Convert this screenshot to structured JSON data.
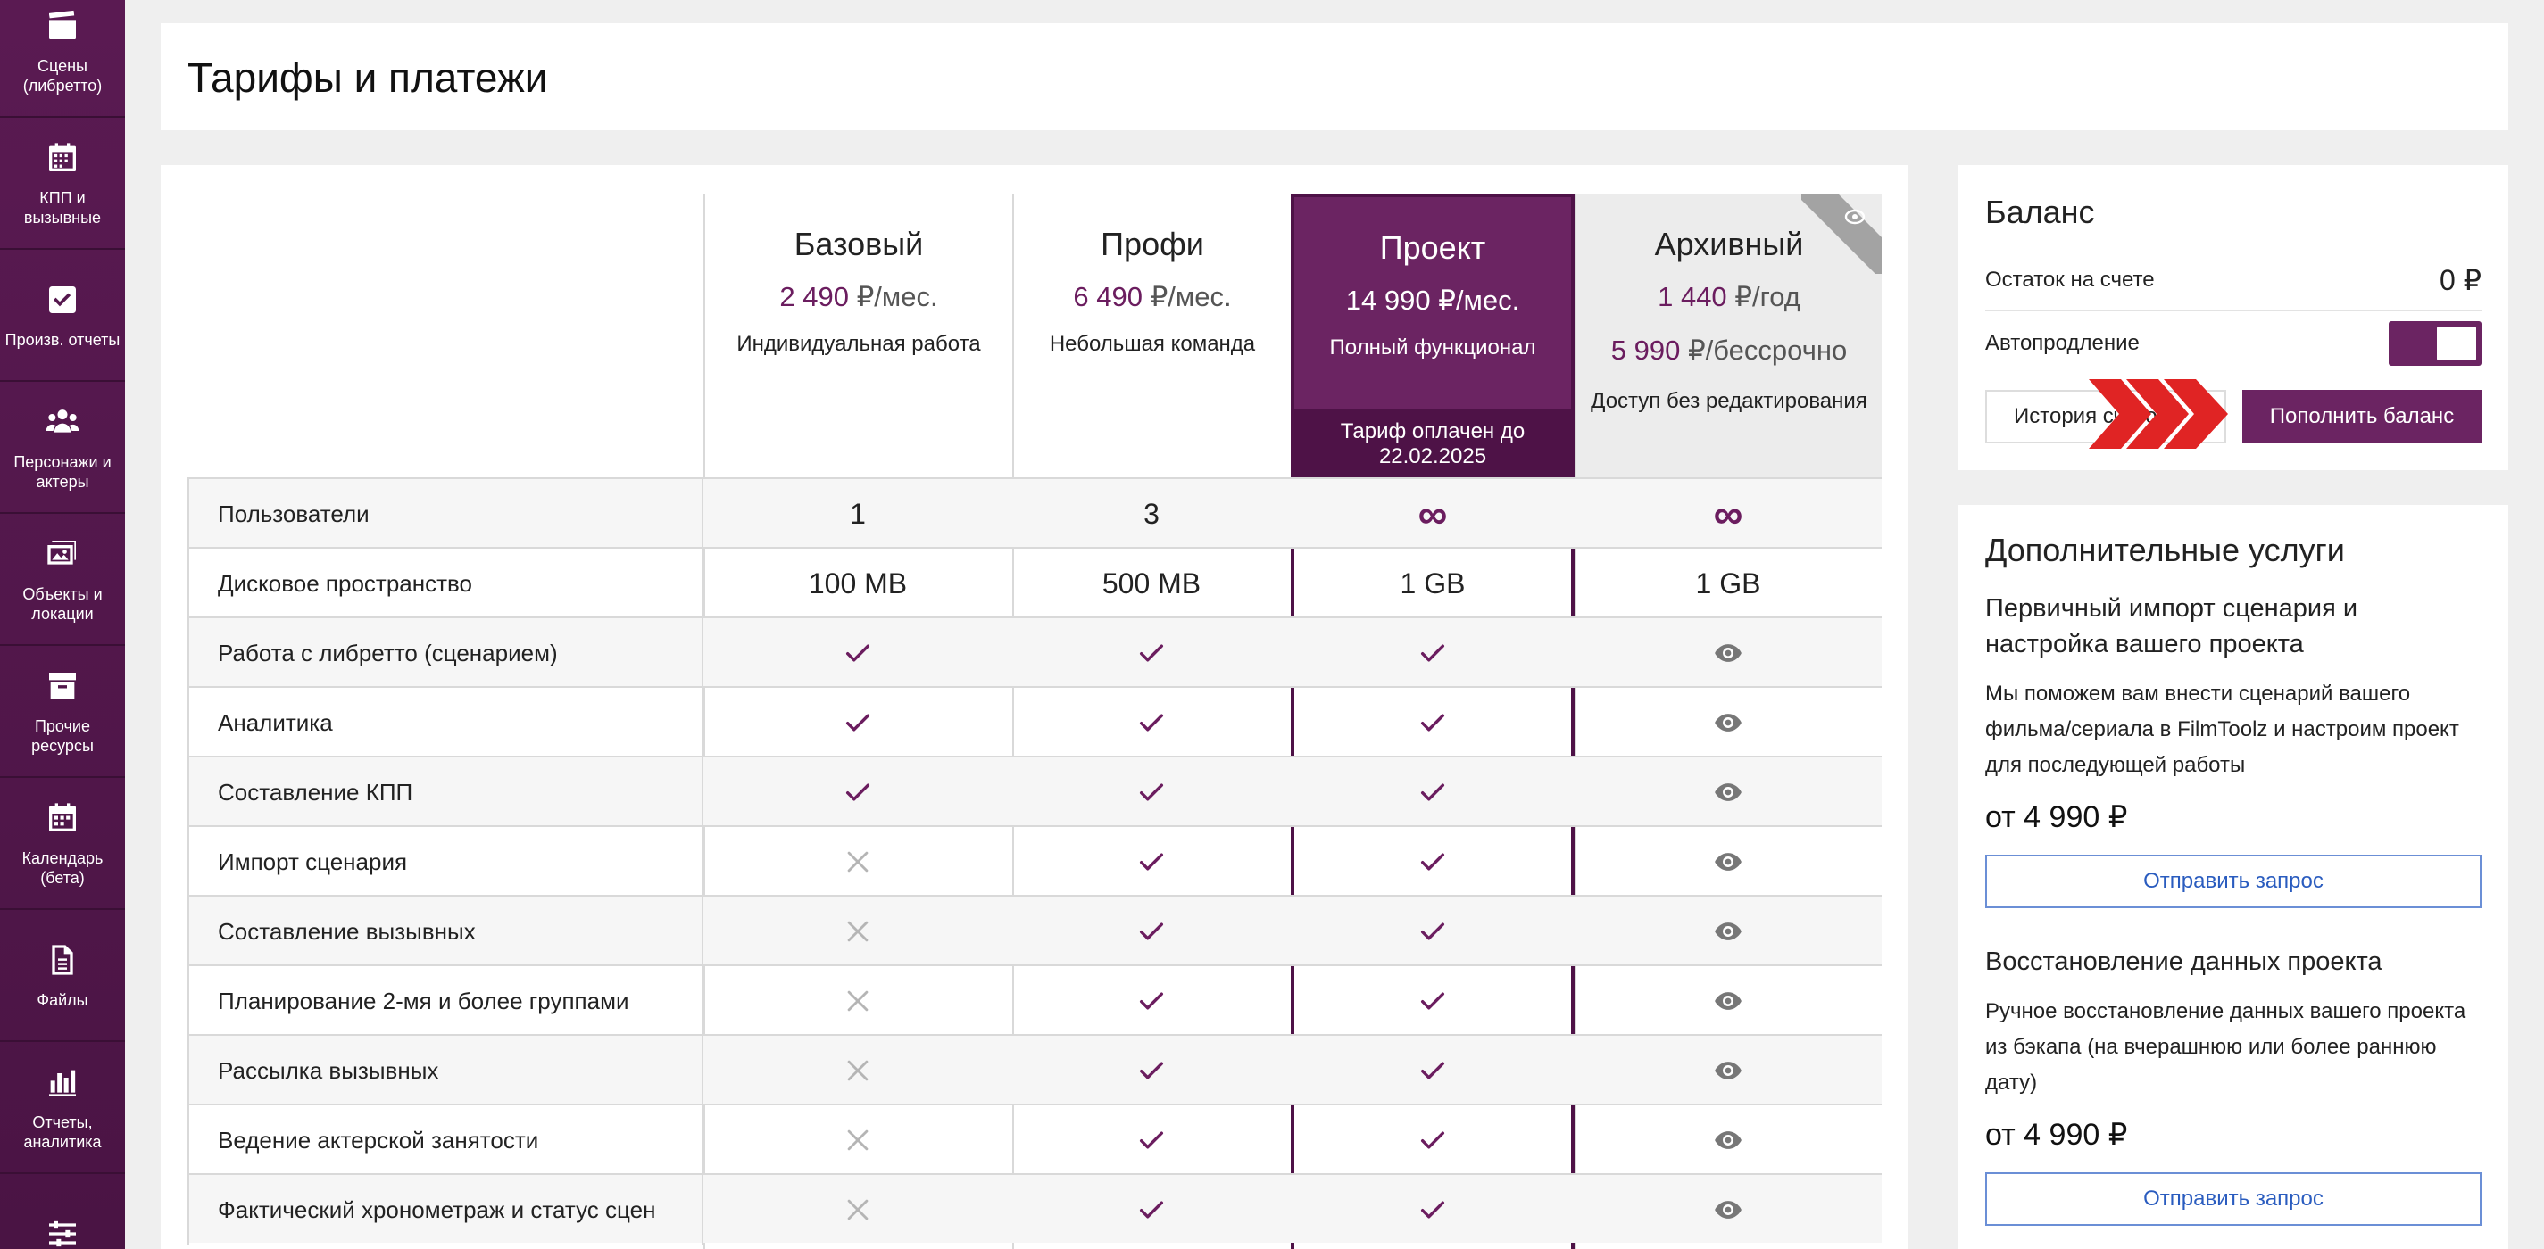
{
  "sidebar": {
    "items": [
      {
        "label": "Сцены (либретто)",
        "icon": "clapperboard-icon"
      },
      {
        "label": "КПП и вызывные",
        "icon": "calendar-grid-icon"
      },
      {
        "label": "Произв. отчеты",
        "icon": "checkbox-icon"
      },
      {
        "label": "Персонажи и актеры",
        "icon": "people-icon"
      },
      {
        "label": "Объекты и локации",
        "icon": "image-icon"
      },
      {
        "label": "Прочие ресурсы",
        "icon": "archive-box-icon"
      },
      {
        "label": "Календарь (бета)",
        "icon": "calendar-icon"
      },
      {
        "label": "Файлы",
        "icon": "file-icon"
      },
      {
        "label": "Отчеты, аналитика",
        "icon": "bar-chart-icon"
      },
      {
        "label": "",
        "icon": "sliders-icon"
      }
    ]
  },
  "header": {
    "title": "Тарифы и платежи"
  },
  "plans": {
    "basic": {
      "name": "Базовый",
      "price_num": "2 490",
      "price_unit": " ₽/мес.",
      "desc": "Индивидуальная работа"
    },
    "profi": {
      "name": "Профи",
      "price_num": "6 490",
      "price_unit": " ₽/мес.",
      "desc": "Небольшая команда"
    },
    "project": {
      "name": "Проект",
      "price_num": "14 990",
      "price_unit": " ₽/мес.",
      "desc": "Полный функционал",
      "paid_note": "Тариф оплачен до 22.02.2025"
    },
    "archive": {
      "name": "Архивный",
      "price_num": "1 440",
      "price_unit": " ₽/год",
      "price2_num": "5 990",
      "price2_unit": " ₽/бессрочно",
      "desc": "Доступ без редактирования"
    }
  },
  "features": [
    {
      "label": "Пользователи",
      "basic": "1",
      "profi": "3",
      "project": "∞",
      "archive": "∞"
    },
    {
      "label": "Дисковое пространство",
      "basic": "100 MB",
      "profi": "500 MB",
      "project": "1 GB",
      "archive": "1 GB"
    },
    {
      "label": "Работа с либретто (сценарием)",
      "basic": "check",
      "profi": "check",
      "project": "check",
      "archive": "view"
    },
    {
      "label": "Аналитика",
      "basic": "check",
      "profi": "check",
      "project": "check",
      "archive": "view"
    },
    {
      "label": "Составление КПП",
      "basic": "check",
      "profi": "check",
      "project": "check",
      "archive": "view"
    },
    {
      "label": "Импорт сценария",
      "basic": "cross",
      "profi": "check",
      "project": "check",
      "archive": "view"
    },
    {
      "label": "Составление вызывных",
      "basic": "cross",
      "profi": "check",
      "project": "check",
      "archive": "view"
    },
    {
      "label": "Планирование 2-мя и более группами",
      "basic": "cross",
      "profi": "check",
      "project": "check",
      "archive": "view"
    },
    {
      "label": "Рассылка вызывных",
      "basic": "cross",
      "profi": "check",
      "project": "check",
      "archive": "view"
    },
    {
      "label": "Ведение актерской занятости",
      "basic": "cross",
      "profi": "check",
      "project": "check",
      "archive": "view"
    },
    {
      "label": "Фактический хронометраж и статус сцен",
      "basic": "cross",
      "profi": "check",
      "project": "check",
      "archive": "view"
    }
  ],
  "balance": {
    "title": "Баланс",
    "remaining_label": "Остаток на счете",
    "remaining_value": "0 ₽",
    "autorenew_label": "Автопродление",
    "autorenew_on": true,
    "history_label": "История счетов",
    "topup_label": "Пополнить баланс"
  },
  "services": {
    "title": "Дополнительные услуги",
    "items": [
      {
        "name": "Первичный импорт сценария и настройка вашего проекта",
        "desc": "Мы поможем вам внести сценарий вашего фильма/сериала в FilmToolz и настроим проект для последующей работы",
        "price": "от 4 990 ₽",
        "button": "Отправить запрос"
      },
      {
        "name": "Восстановление данных проекта",
        "desc": "Ручное восстановление данных вашего проекта из бэкапа (на вчерашнюю или более раннюю дату)",
        "price": "от 4 990 ₽",
        "button": "Отправить запрос"
      }
    ]
  },
  "colors": {
    "brand": "#6b2462",
    "brand_dark": "#4e1247",
    "check": "#6b1d5f",
    "cross": "#b5b5b5",
    "view": "#777777",
    "link": "#2a5cbf",
    "marker": "#e02424"
  }
}
